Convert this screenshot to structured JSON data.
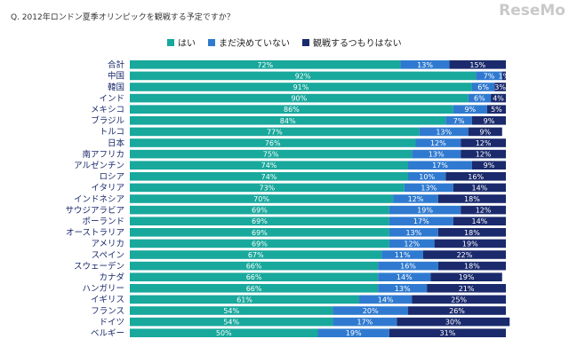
{
  "title": "Q. 2012年ロンドン夏季オリンピックを観戦する予定ですか？",
  "watermark": "ReseMo",
  "colors": {
    "yes": "#18a89c",
    "undecided": "#2f7ad0",
    "no": "#1a2a6c"
  },
  "chart_data": {
    "type": "bar",
    "orientation": "horizontal",
    "stacked": true,
    "legend_position": "top",
    "categories": [
      "合計",
      "中国",
      "韓国",
      "インド",
      "メキシコ",
      "ブラジル",
      "トルコ",
      "日本",
      "南アフリカ",
      "アルゼンチン",
      "ロシア",
      "イタリア",
      "インドネシア",
      "サウジアラビア",
      "ポーランド",
      "オーストラリア",
      "アメリカ",
      "スペイン",
      "スウェーデン",
      "カナダ",
      "ハンガリー",
      "イギリス",
      "フランス",
      "ドイツ",
      "ベルギー"
    ],
    "series": [
      {
        "name": "はい",
        "values": [
          72,
          92,
          91,
          90,
          86,
          84,
          77,
          76,
          75,
          74,
          74,
          73,
          70,
          69,
          69,
          69,
          69,
          67,
          66,
          66,
          66,
          61,
          54,
          54,
          50
        ]
      },
      {
        "name": "まだ決めていない",
        "values": [
          13,
          7,
          6,
          6,
          9,
          7,
          13,
          12,
          13,
          17,
          10,
          13,
          12,
          19,
          17,
          13,
          12,
          11,
          16,
          14,
          13,
          14,
          20,
          17,
          19
        ]
      },
      {
        "name": "観戦するつもりはない",
        "values": [
          15,
          1,
          3,
          4,
          5,
          9,
          9,
          12,
          12,
          9,
          16,
          14,
          18,
          12,
          14,
          18,
          19,
          22,
          18,
          19,
          21,
          25,
          26,
          30,
          31
        ]
      }
    ],
    "value_labels": [
      [
        "72%",
        "92%",
        "91%",
        "90%",
        "86%",
        "84%",
        "77%",
        "76%",
        "75%",
        "74%",
        "74%",
        "73%",
        "70%",
        "69%",
        "69%",
        "69%",
        "69%",
        "67%",
        "66%",
        "66%",
        "66%",
        "61%",
        "54%",
        "54%",
        "50%"
      ],
      [
        "13%",
        "7%",
        "6%",
        "6%",
        "9%",
        "7%",
        "13%",
        "12%",
        "13%",
        "17%",
        "10%",
        "13%",
        "12%",
        "19%",
        "17%",
        "13%",
        "12%",
        "11%",
        "16%",
        "14%",
        "13%",
        "14%",
        "20%",
        "17%",
        "19%"
      ],
      [
        "15%",
        "1%",
        "3%",
        "4%",
        "5%",
        "9%",
        "9%",
        "12%",
        "12%",
        "9%",
        "16%",
        "14%",
        "18%",
        "12%",
        "14%",
        "18%",
        "19%",
        "22%",
        "18%",
        "19%",
        "21%",
        "25%",
        "26%",
        "30%",
        "31%"
      ]
    ],
    "xlim": [
      0,
      100
    ]
  }
}
